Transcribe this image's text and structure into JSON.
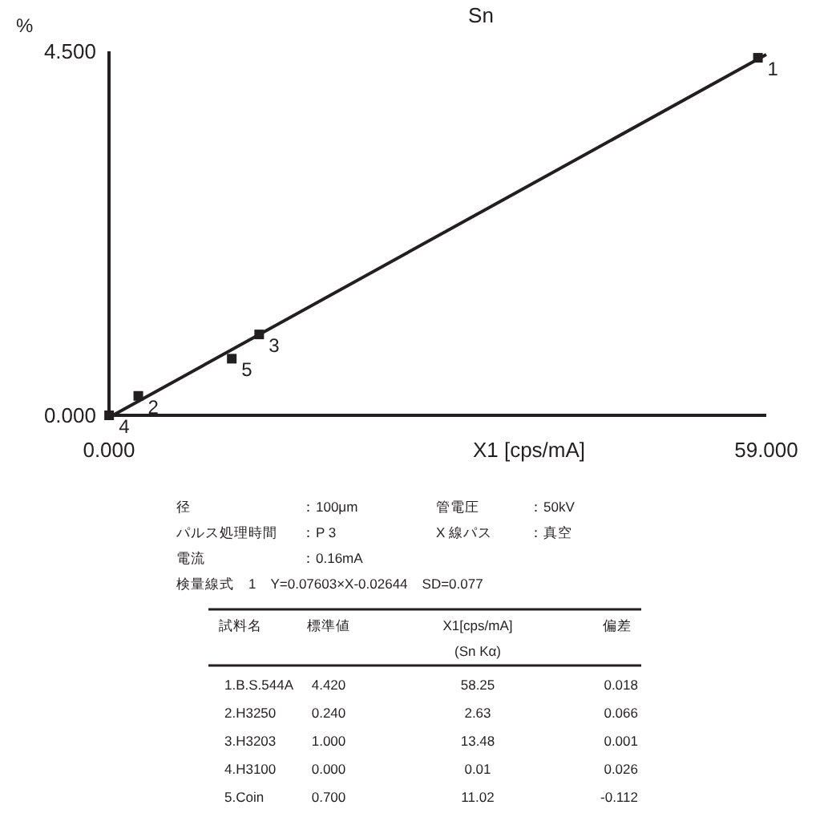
{
  "chart_data": {
    "type": "scatter",
    "title": "Sn",
    "xlabel": "X1 [cps/mA]",
    "ylabel": "%",
    "xlim": [
      0,
      59
    ],
    "ylim": [
      0,
      4.5
    ],
    "xticks": [
      {
        "value": 0,
        "label": "0.000"
      },
      {
        "value": 59,
        "label": "59.000"
      }
    ],
    "yticks": [
      {
        "value": 0,
        "label": "0.000"
      },
      {
        "value": 4.5,
        "label": "4.500"
      }
    ],
    "series": [
      {
        "type": "scatter",
        "marker": "square",
        "color": "#231f20",
        "x": [
          58.25,
          2.63,
          13.48,
          0.01,
          11.02
        ],
        "values": [
          4.42,
          0.24,
          1.0,
          0.0,
          0.7
        ]
      },
      {
        "type": "line",
        "marker": "none",
        "color": "#231f20",
        "x": [
          0.35,
          59
        ],
        "values": [
          0,
          4.46
        ]
      }
    ],
    "annotations": [
      {
        "text": "1",
        "x": 58.25,
        "y": 4.42
      },
      {
        "text": "2",
        "x": 2.63,
        "y": 0.24
      },
      {
        "text": "3",
        "x": 13.48,
        "y": 1.0
      },
      {
        "text": "4",
        "x": 0.01,
        "y": 0.0
      },
      {
        "text": "5",
        "x": 11.02,
        "y": 0.7
      },
      "径",
      "：100μm",
      "管電圧",
      "：50kV",
      "パルス処理時間",
      "：P 3",
      "X 線パス",
      "：真空",
      "電流",
      "：0.16mA",
      "検量線式　1　Y=0.07603×X-0.02644　SD=0.077",
      "試料名",
      "標準値",
      "X1[cps/mA]",
      "偏差",
      "(Sn Kα)",
      "1.B.S.544A",
      "4.420",
      "58.25",
      "0.018",
      "2.H3250",
      "0.240",
      "2.63",
      "0.066",
      "3.H3203",
      "1.000",
      "13.48",
      "0.001",
      "4.H3100",
      "0.000",
      "0.01",
      "0.026",
      "5.Coin",
      "0.700",
      "11.02",
      "-0.112"
    ]
  }
}
